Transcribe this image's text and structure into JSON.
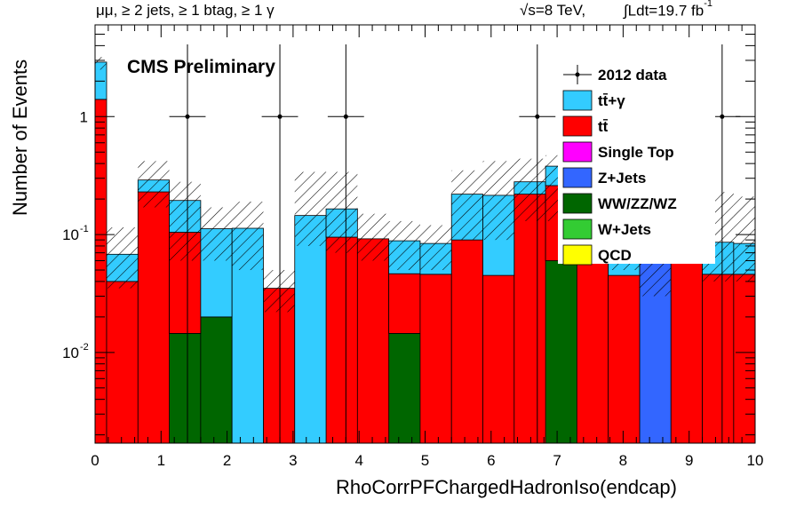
{
  "header": {
    "channel": "μμ, ≥ 2 jets, ≥ 1 btag, ≥ 1 γ",
    "energy": "√s=8 TeV,",
    "lumi": "∫Ldt=19.7 fb",
    "lumi_exp": "-1"
  },
  "cms_label": "CMS Preliminary",
  "chart_data": {
    "type": "bar",
    "stacked": true,
    "xlabel": "RhoCorrPFChargedHadronIso(endcap)",
    "ylabel": "Number of Events",
    "xlim": [
      0,
      10
    ],
    "ylim": [
      0.0017,
      6
    ],
    "log_y": true,
    "x_ticks": [
      "0",
      "1",
      "2",
      "3",
      "4",
      "5",
      "6",
      "7",
      "8",
      "9",
      "10"
    ],
    "y_ticks": [
      {
        "value": 1,
        "label": "1"
      },
      {
        "value": 0.1,
        "label": "10",
        "exp": "-1"
      },
      {
        "value": 0.01,
        "label": "10",
        "exp": "-2"
      }
    ],
    "bin_edges": [
      0,
      0.175,
      0.65,
      1.125,
      1.6,
      2.075,
      2.55,
      3.025,
      3.5,
      3.975,
      4.45,
      4.925,
      5.4,
      5.875,
      6.35,
      6.825,
      7.3,
      7.775,
      8.25,
      8.725,
      9.2,
      9.675,
      10
    ],
    "series": [
      {
        "name": "QCD",
        "color": "#ffff00",
        "values": [
          0,
          0,
          0,
          0,
          0,
          0,
          0,
          0,
          0,
          0,
          0,
          0,
          0,
          0,
          0,
          0,
          0,
          0,
          0,
          0,
          0,
          0
        ]
      },
      {
        "name": "W+Jets",
        "color": "#33cc33",
        "values": [
          0,
          0,
          0,
          0,
          0,
          0,
          0,
          0,
          0,
          0,
          0,
          0,
          0,
          0,
          0,
          0,
          0,
          0,
          0,
          0,
          0,
          0
        ]
      },
      {
        "name": "WW/ZZ/WZ",
        "color": "#006600",
        "values": [
          0,
          0,
          0,
          0.0145,
          0.02,
          0,
          0,
          0,
          0,
          0,
          0.0145,
          0,
          0,
          0,
          0,
          0.06,
          0,
          0,
          0,
          0,
          0,
          0
        ]
      },
      {
        "name": "Z+Jets",
        "color": "#3366ff",
        "values": [
          0,
          0,
          0,
          0,
          0,
          0,
          0,
          0,
          0,
          0,
          0,
          0,
          0,
          0,
          0,
          0,
          0,
          0,
          0.06,
          0,
          0,
          0
        ]
      },
      {
        "name": "Single Top",
        "color": "#ff00ff",
        "values": [
          0,
          0,
          0,
          0,
          0,
          0,
          0,
          0,
          0,
          0,
          0,
          0,
          0,
          0,
          0,
          0,
          0,
          0,
          0,
          0,
          0,
          0
        ]
      },
      {
        "name": "tt̄",
        "color": "#ff0000",
        "values": [
          1.4,
          0.04,
          0.23,
          0.09,
          0.0,
          0.0,
          0.035,
          0.0,
          0.095,
          0.092,
          0.032,
          0.046,
          0.09,
          0.045,
          0.22,
          0.2,
          0.31,
          0.045,
          0.0,
          0.25,
          0.046,
          0.046
        ]
      },
      {
        "name": "tt̄+γ",
        "color": "#33ccff",
        "values": [
          1.5,
          0.028,
          0.06,
          0.09,
          0.092,
          0.113,
          0.0,
          0.145,
          0.07,
          0.0,
          0.042,
          0.038,
          0.13,
          0.17,
          0.06,
          0.12,
          0.08,
          0.04,
          0.0,
          0.06,
          0.04,
          0.038
        ]
      }
    ],
    "uncertainty": {
      "name": "stat. uncertainty",
      "style": "hatched",
      "up": [
        3.2,
        0.115,
        0.42,
        0.28,
        0.17,
        0.19,
        0.05,
        0.34,
        0.34,
        0.15,
        0.13,
        0.12,
        0.35,
        0.42,
        0.44,
        0.47,
        0.52,
        0.24,
        0.28,
        0.47,
        0.23,
        0.21
      ],
      "down": [
        2.5,
        0.035,
        0.17,
        0.06,
        0.06,
        0.05,
        0.022,
        0.08,
        0.07,
        0.06,
        0.05,
        0.05,
        0.09,
        0.09,
        0.13,
        0.13,
        0.16,
        0.05,
        0.03,
        0.14,
        0.04,
        0.04
      ]
    },
    "data": {
      "name": "2012 data",
      "points": [
        {
          "x": 1.4,
          "y": 1
        },
        {
          "x": 2.8,
          "y": 1
        },
        {
          "x": 3.8,
          "y": 1
        },
        {
          "x": 6.7,
          "y": 1
        },
        {
          "x": 9.5,
          "y": 1
        }
      ],
      "xerr": 0.275
    },
    "legend_position": "top-right",
    "legend": [
      {
        "label": "2012 data",
        "style": "marker"
      },
      {
        "label": "tt̄+γ",
        "color": "#33ccff"
      },
      {
        "label": "tt̄",
        "color": "#ff0000"
      },
      {
        "label": "Single Top",
        "color": "#ff00ff"
      },
      {
        "label": "Z+Jets",
        "color": "#3366ff"
      },
      {
        "label": "WW/ZZ/WZ",
        "color": "#006600"
      },
      {
        "label": "W+Jets",
        "color": "#33cc33"
      },
      {
        "label": "QCD",
        "color": "#ffff00"
      }
    ]
  }
}
